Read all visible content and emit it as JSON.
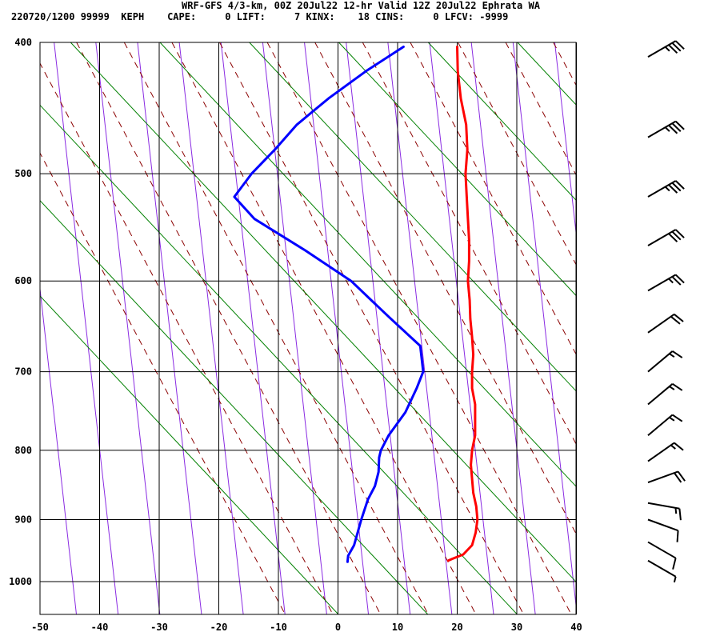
{
  "header": {
    "line1": "WRF-GFS 4/3-km, 00Z 20Jul22 12-hr Valid 12Z 20Jul22 Ephrata WA",
    "line2": "220720/1200 99999  KEPH    CAPE:     0 LIFT:     7 KINX:    18 CINS:     0 LFCV: -9999"
  },
  "colors": {
    "temperature": "#ff0000",
    "dewpoint": "#0000ff",
    "isotherm": "#000000",
    "dry_adiabat": "#008000",
    "moist_adiabat": "#8b0000",
    "mixing_ratio": "#8a2be2"
  },
  "chart_data": {
    "type": "line",
    "subtype": "skew-T log-P sounding",
    "xlabel": "",
    "ylabel": "",
    "x_ticks": [
      -50,
      -40,
      -30,
      -20,
      -10,
      0,
      10,
      20,
      30,
      40
    ],
    "x_tick_labels": [
      "-50",
      "-40",
      "-30",
      "-20",
      "-10",
      "0",
      "10",
      "20",
      "30",
      "40"
    ],
    "y_ticks": [
      400,
      500,
      600,
      700,
      800,
      900,
      1000
    ],
    "y_tick_labels": [
      "400",
      "500",
      "600",
      "700",
      "800",
      "900",
      "1000"
    ],
    "xlim": [
      -50,
      40
    ],
    "ylim": [
      1050,
      400
    ],
    "y_scale": "log, inverted",
    "grid": true,
    "series": [
      {
        "key": "temperature",
        "p": [
          965,
          962,
          955,
          940,
          920,
          900,
          880,
          860,
          840,
          820,
          800,
          780,
          760,
          740,
          720,
          700,
          680,
          660,
          640,
          620,
          600,
          580,
          560,
          540,
          520,
          500,
          480,
          460,
          440,
          420,
          403
        ],
        "t": [
          18.5,
          19.2,
          21.0,
          22.5,
          23.1,
          23.4,
          23.2,
          22.7,
          22.5,
          22.3,
          22.5,
          23.0,
          23.0,
          23.0,
          22.5,
          22.5,
          22.7,
          22.5,
          22.2,
          22.1,
          21.8,
          22.0,
          22.0,
          21.8,
          21.6,
          21.4,
          21.7,
          21.5,
          20.6,
          20.1,
          20.0
        ]
      },
      {
        "key": "dewpoint",
        "p": [
          967,
          957,
          940,
          900,
          870,
          850,
          830,
          810,
          800,
          780,
          750,
          720,
          700,
          670,
          640,
          620,
          600,
          570,
          540,
          520,
          500,
          480,
          460,
          440,
          420,
          403
        ],
        "dp": [
          1.6,
          1.7,
          2.7,
          3.9,
          5.0,
          6.2,
          6.8,
          6.9,
          7.2,
          8.5,
          11.3,
          13.2,
          14.3,
          13.8,
          8.9,
          5.6,
          2.2,
          -5.4,
          -14.0,
          -17.4,
          -14.5,
          -10.6,
          -6.9,
          -1.6,
          4.7,
          11.0
        ]
      }
    ],
    "wind_barbs": [
      {
        "p": 410,
        "spd": 35,
        "dir": 240
      },
      {
        "p": 470,
        "spd": 35,
        "dir": 240
      },
      {
        "p": 520,
        "spd": 35,
        "dir": 240
      },
      {
        "p": 565,
        "spd": 30,
        "dir": 240
      },
      {
        "p": 610,
        "spd": 25,
        "dir": 240
      },
      {
        "p": 655,
        "spd": 20,
        "dir": 235
      },
      {
        "p": 700,
        "spd": 15,
        "dir": 230
      },
      {
        "p": 740,
        "spd": 15,
        "dir": 230
      },
      {
        "p": 780,
        "spd": 15,
        "dir": 230
      },
      {
        "p": 815,
        "spd": 15,
        "dir": 235
      },
      {
        "p": 845,
        "spd": 20,
        "dir": 250
      },
      {
        "p": 875,
        "spd": 15,
        "dir": 280
      },
      {
        "p": 900,
        "spd": 10,
        "dir": 290
      },
      {
        "p": 935,
        "spd": 10,
        "dir": 300
      },
      {
        "p": 965,
        "spd": 5,
        "dir": 300
      }
    ]
  }
}
